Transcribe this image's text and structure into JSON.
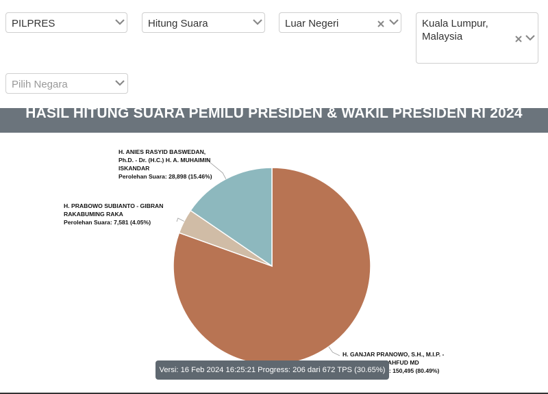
{
  "filters": {
    "election": {
      "value": "PILPRES"
    },
    "count_type": {
      "value": "Hitung Suara"
    },
    "region": {
      "value": "Luar Negeri"
    },
    "city": {
      "value_line1": "Kuala Lumpur,",
      "value_line2": "Malaysia"
    },
    "country": {
      "placeholder": "Pilih Negara"
    }
  },
  "banner": {
    "title": "HASIL HITUNG SUARA PEMILU PRESIDEN & WAKIL PRESIDEN RI 2024"
  },
  "candidates": [
    {
      "name_lines": [
        "H. ANIES RASYID BASWEDAN,",
        "Ph.D. - Dr. (H.C.) H. A. MUHAIMIN",
        "ISKANDAR"
      ],
      "votes_text": "Perolehan Suara: 28,898 (15.46%)"
    },
    {
      "name_lines": [
        "H. PRABOWO SUBIANTO - GIBRAN",
        "RAKABUMING RAKA"
      ],
      "votes_text": "Perolehan Suara: 7,581 (4.05%)"
    },
    {
      "name_lines": [
        "H. GANJAR PRANOWO, S.H., M.I.P. -",
        "Prof. Dr. H. M. MAHFUD MD"
      ],
      "votes_text": "Perolehan Suara: 150,495 (80.49%)"
    }
  ],
  "tooltip": {
    "text": "Versi: 16 Feb 2024 16:25:21 Progress: 206 dari 672 TPS (30.65%)"
  },
  "chart_data": {
    "type": "pie",
    "title": "HASIL HITUNG SUARA PEMILU PRESIDEN & WAKIL PRESIDEN RI 2024",
    "slices": [
      {
        "label": "H. GANJAR PRANOWO, S.H., M.I.P. - Prof. Dr. H. M. MAHFUD MD",
        "value": 150495,
        "percent": 80.49,
        "color": "#b87453"
      },
      {
        "label": "H. PRABOWO SUBIANTO - GIBRAN RAKABUMING RAKA",
        "value": 7581,
        "percent": 4.05,
        "color": "#d0bca6"
      },
      {
        "label": "H. ANIES RASYID BASWEDAN, Ph.D. - Dr. (H.C.) H. A. MUHAIMIN ISKANDAR",
        "value": 28898,
        "percent": 15.46,
        "color": "#8db8be"
      }
    ]
  }
}
